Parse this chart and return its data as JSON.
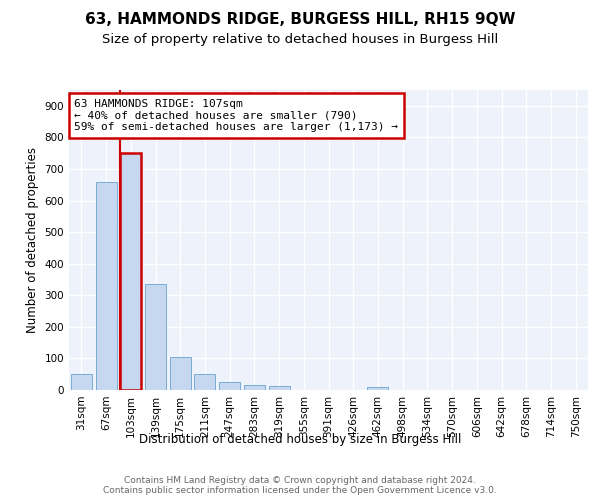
{
  "title1": "63, HAMMONDS RIDGE, BURGESS HILL, RH15 9QW",
  "title2": "Size of property relative to detached houses in Burgess Hill",
  "xlabel": "Distribution of detached houses by size in Burgess Hill",
  "ylabel": "Number of detached properties",
  "bar_labels": [
    "31sqm",
    "67sqm",
    "103sqm",
    "139sqm",
    "175sqm",
    "211sqm",
    "247sqm",
    "283sqm",
    "319sqm",
    "355sqm",
    "391sqm",
    "426sqm",
    "462sqm",
    "498sqm",
    "534sqm",
    "570sqm",
    "606sqm",
    "642sqm",
    "678sqm",
    "714sqm",
    "750sqm"
  ],
  "bar_values": [
    50,
    660,
    750,
    335,
    105,
    50,
    25,
    17,
    12,
    0,
    0,
    0,
    8,
    0,
    0,
    0,
    0,
    0,
    0,
    0,
    0
  ],
  "bar_color": "#c5d8f0",
  "bar_edge_color": "#7aadd4",
  "highlight_bar_index": 2,
  "highlight_edge_color": "#cc0000",
  "vline_color": "#cc0000",
  "annotation_text": "63 HAMMONDS RIDGE: 107sqm\n← 40% of detached houses are smaller (790)\n59% of semi-detached houses are larger (1,173) →",
  "annotation_box_color": "#ffffff",
  "annotation_edge_color": "#cc0000",
  "ylim": [
    0,
    950
  ],
  "yticks": [
    0,
    100,
    200,
    300,
    400,
    500,
    600,
    700,
    800,
    900
  ],
  "bg_color": "#eef2fb",
  "grid_color": "#ffffff",
  "fig_bg_color": "#ffffff",
  "footer": "Contains HM Land Registry data © Crown copyright and database right 2024.\nContains public sector information licensed under the Open Government Licence v3.0.",
  "title1_fontsize": 11,
  "title2_fontsize": 9.5,
  "xlabel_fontsize": 8.5,
  "ylabel_fontsize": 8.5,
  "tick_fontsize": 7.5,
  "annotation_fontsize": 8,
  "footer_fontsize": 6.5
}
